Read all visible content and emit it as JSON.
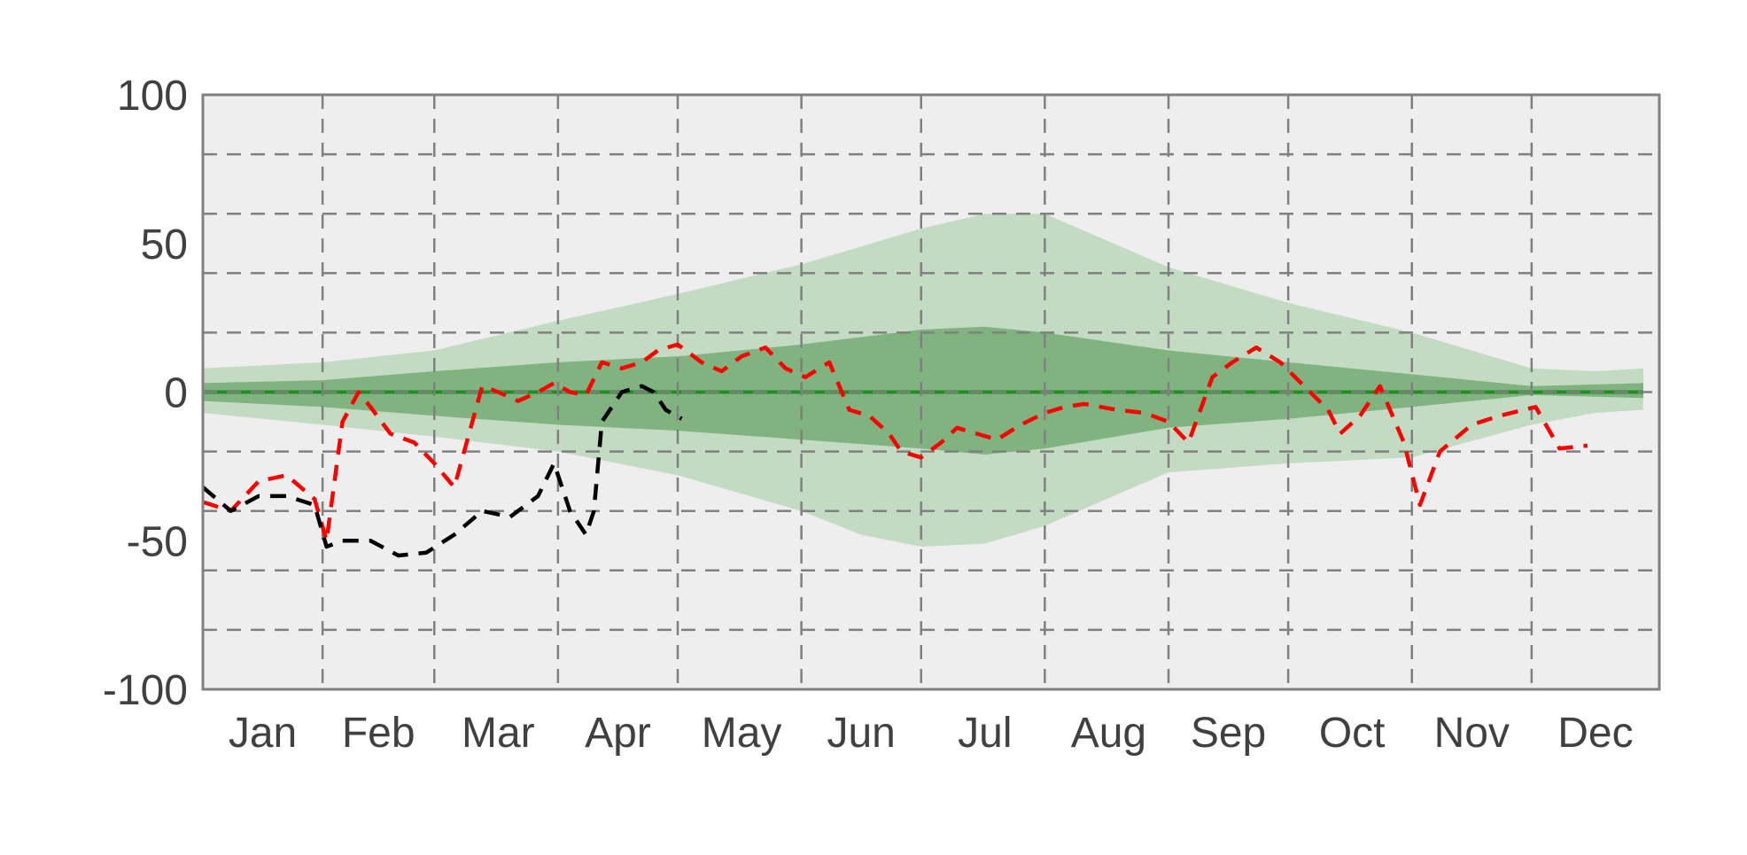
{
  "chart_data": {
    "type": "area",
    "title": "",
    "xlabel": "",
    "ylabel": "",
    "xlim": [
      0,
      365
    ],
    "ylim": [
      -100,
      100
    ],
    "y_ticks": [
      100,
      50,
      0,
      -50,
      -100
    ],
    "y_tick_labels": [
      "100",
      "50",
      "0",
      "-50",
      "-100"
    ],
    "y_gridlines": [
      80,
      60,
      40,
      20,
      0,
      -20,
      -40,
      -60,
      -80
    ],
    "x_gridlines_day": [
      30,
      58,
      89,
      119,
      150,
      180,
      211,
      242,
      272,
      303,
      333
    ],
    "month_labels": [
      "Jan",
      "Feb",
      "Mar",
      "Apr",
      "May",
      "Jun",
      "Jul",
      "Aug",
      "Sep",
      "Oct",
      "Nov",
      "Dec"
    ],
    "month_label_day": [
      15,
      44,
      74,
      104,
      135,
      165,
      196,
      227,
      257,
      288,
      318,
      349
    ],
    "grid": true,
    "legend": "none",
    "colors": {
      "plot_background": "#eeeeee",
      "outer_band": "#c3dbc3",
      "inner_band": "#80b380",
      "median_line": "#228b22",
      "gridline": "#808080",
      "red_series": "#ff0000",
      "black_series": "#000000"
    },
    "series": [
      {
        "role": "outer_band",
        "x": [
          0,
          30,
          58,
          89,
          119,
          150,
          165,
          180,
          196,
          211,
          242,
          272,
          303,
          333,
          349,
          361
        ],
        "upper": [
          8,
          10,
          14,
          24,
          33,
          43,
          49,
          55,
          60,
          60,
          42,
          30,
          20,
          8,
          7,
          8
        ],
        "lower": [
          -7,
          -11,
          -15,
          -20,
          -28,
          -40,
          -48,
          -52,
          -51,
          -45,
          -27,
          -24,
          -22,
          -11,
          -7,
          -6
        ]
      },
      {
        "role": "inner_band",
        "x": [
          0,
          30,
          58,
          89,
          119,
          150,
          180,
          196,
          211,
          242,
          272,
          303,
          333,
          361
        ],
        "upper": [
          3,
          4,
          7,
          10,
          12,
          16,
          21,
          22,
          20,
          14,
          10,
          6,
          2,
          3
        ],
        "lower": [
          -3,
          -5,
          -8,
          -11,
          -13,
          -16,
          -19,
          -21,
          -19,
          -12,
          -9,
          -5,
          -1,
          -2
        ]
      },
      {
        "role": "median",
        "x": [
          0,
          361
        ],
        "y": [
          0,
          0
        ]
      },
      {
        "role": "red_dashed",
        "x": [
          0,
          7,
          14,
          21,
          28,
          31,
          35,
          39,
          42,
          47,
          53,
          58,
          63,
          70,
          74,
          79,
          84,
          88,
          92,
          96,
          100,
          105,
          110,
          114,
          119,
          125,
          130,
          135,
          141,
          146,
          151,
          157,
          162,
          167,
          172,
          175,
          180,
          185,
          189,
          194,
          199,
          205,
          211,
          216,
          221,
          229,
          236,
          242,
          247,
          253,
          258,
          264,
          270,
          276,
          282,
          285,
          290,
          295,
          301,
          305,
          310,
          318,
          325,
          331,
          334,
          340,
          347
        ],
        "y": [
          -37,
          -40,
          -30,
          -28,
          -36,
          -50,
          -10,
          0,
          -5,
          -14,
          -17,
          -24,
          -32,
          2,
          0,
          -3,
          0,
          3,
          0,
          -1,
          10,
          8,
          10,
          14,
          16,
          10,
          7,
          12,
          15,
          8,
          5,
          10,
          -6,
          -8,
          -14,
          -20,
          -22,
          -17,
          -12,
          -14,
          -16,
          -11,
          -7,
          -5,
          -4,
          -6,
          -7,
          -10,
          -17,
          5,
          10,
          15,
          10,
          2,
          -6,
          -14,
          -8,
          2,
          -17,
          -38,
          -20,
          -11,
          -8,
          -6,
          -5,
          -19,
          -18
        ]
      },
      {
        "role": "black_dashed",
        "x": [
          0,
          7,
          14,
          21,
          28,
          31,
          35,
          42,
          49,
          56,
          63,
          70,
          77,
          84,
          88,
          92,
          96,
          98,
          100,
          105,
          110,
          113,
          116,
          120
        ],
        "y": [
          -32,
          -40,
          -35,
          -35,
          -38,
          -52,
          -50,
          -50,
          -55,
          -54,
          -48,
          -40,
          -42,
          -35,
          -24,
          -40,
          -48,
          -40,
          -10,
          0,
          2,
          0,
          -6,
          -9
        ]
      }
    ]
  }
}
